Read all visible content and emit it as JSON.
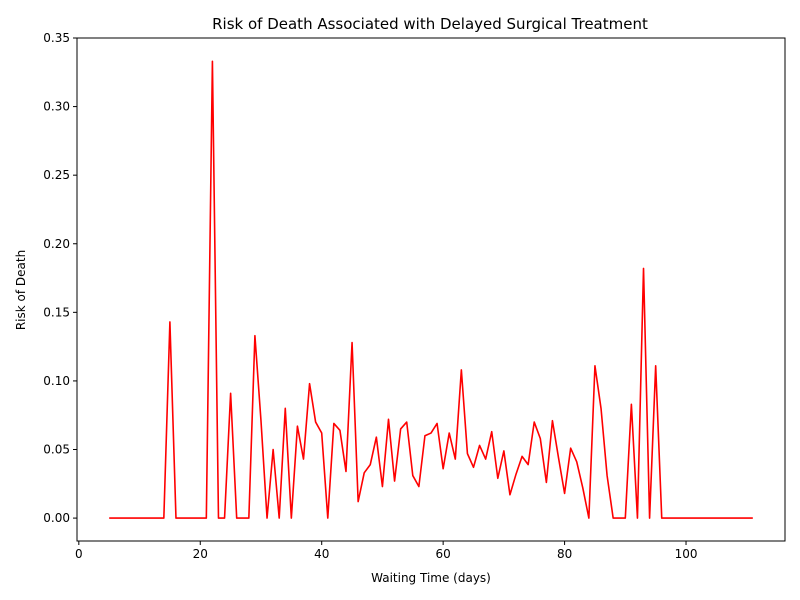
{
  "chart_data": {
    "type": "line",
    "title": "Risk of Death Associated with Delayed Surgical Treatment",
    "xlabel": "Waiting Time (days)",
    "ylabel": "Risk of Death",
    "xlim": [
      -0.3,
      116.3
    ],
    "ylim": [
      -0.0167,
      0.35
    ],
    "xticks": [
      0,
      20,
      40,
      60,
      80,
      100
    ],
    "xtick_labels": [
      "0",
      "20",
      "40",
      "60",
      "80",
      "100"
    ],
    "yticks": [
      0.0,
      0.05,
      0.1,
      0.15,
      0.2,
      0.25,
      0.3,
      0.35
    ],
    "ytick_labels": [
      "0.00",
      "0.05",
      "0.10",
      "0.15",
      "0.20",
      "0.25",
      "0.30",
      "0.35"
    ],
    "grid": false,
    "series": [
      {
        "color": "#ff0000",
        "x": [
          5,
          6,
          7,
          8,
          9,
          10,
          11,
          12,
          13,
          14,
          15,
          16,
          17,
          18,
          19,
          20,
          21,
          22,
          23,
          24,
          25,
          26,
          27,
          28,
          29,
          30,
          31,
          32,
          33,
          34,
          35,
          36,
          37,
          38,
          39,
          40,
          41,
          42,
          43,
          44,
          45,
          46,
          47,
          48,
          49,
          50,
          51,
          52,
          53,
          54,
          55,
          56,
          57,
          58,
          59,
          60,
          61,
          62,
          63,
          64,
          65,
          66,
          67,
          68,
          69,
          70,
          71,
          72,
          73,
          74,
          75,
          76,
          77,
          78,
          79,
          80,
          81,
          82,
          83,
          84,
          85,
          86,
          87,
          88,
          89,
          90,
          91,
          92,
          93,
          94,
          95,
          96,
          97,
          98,
          99,
          100,
          101,
          102,
          103,
          104,
          105,
          106,
          107,
          108,
          109,
          110,
          111
        ],
        "y": [
          0,
          0,
          0,
          0,
          0,
          0,
          0,
          0,
          0,
          0,
          0.143,
          0,
          0,
          0,
          0,
          0,
          0,
          0.333,
          0,
          0,
          0.091,
          0,
          0,
          0,
          0.133,
          0.071,
          0,
          0.05,
          0,
          0.08,
          0,
          0.067,
          0.043,
          0.098,
          0.07,
          0.062,
          0,
          0.069,
          0.064,
          0.034,
          0.128,
          0.012,
          0.033,
          0.039,
          0.059,
          0.023,
          0.072,
          0.027,
          0.065,
          0.07,
          0.031,
          0.023,
          0.06,
          0.062,
          0.069,
          0.036,
          0.062,
          0.043,
          0.108,
          0.047,
          0.037,
          0.053,
          0.043,
          0.063,
          0.029,
          0.049,
          0.017,
          0.032,
          0.045,
          0.039,
          0.07,
          0.058,
          0.026,
          0.071,
          0.044,
          0.018,
          0.051,
          0.041,
          0.022,
          0,
          0.111,
          0.08,
          0.031,
          0,
          0,
          0,
          0.083,
          0,
          0.182,
          0,
          0.111,
          0,
          0,
          0,
          0,
          0,
          0,
          0,
          0,
          0,
          0,
          0,
          0,
          0,
          0,
          0,
          0
        ]
      }
    ]
  }
}
